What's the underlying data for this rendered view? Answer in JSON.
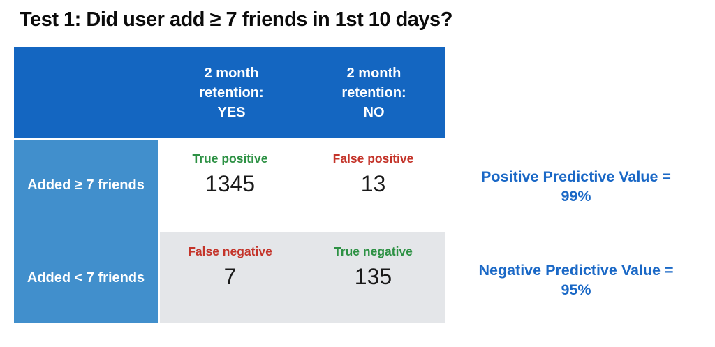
{
  "title": "Test 1: Did user add ≥ 7 friends in 1st 10 days?",
  "colors": {
    "header_bg": "#1466c1",
    "header_text": "#ffffff",
    "row_label_bg": "#418fcc",
    "row_label_text": "#ffffff",
    "row2_band_bg": "#e4e6e9",
    "true_label": "#2d9144",
    "false_label": "#c4342a",
    "value_text": "#1a1a1a",
    "metric_text": "#1a68c6"
  },
  "matrix": {
    "column_headers": [
      {
        "lines": [
          "2 month",
          "retention:",
          "YES"
        ]
      },
      {
        "lines": [
          "2 month",
          "retention:",
          "NO"
        ]
      }
    ],
    "rows": [
      {
        "label": "Added ≥ 7 friends",
        "cells": [
          {
            "label": "True positive",
            "value": "1345",
            "kind": "true"
          },
          {
            "label": "False positive",
            "value": "13",
            "kind": "false"
          }
        ]
      },
      {
        "label": "Added < 7 friends",
        "cells": [
          {
            "label": "False negative",
            "value": "7",
            "kind": "false"
          },
          {
            "label": "True negative",
            "value": "135",
            "kind": "true"
          }
        ]
      }
    ]
  },
  "metrics": [
    {
      "name": "Positive Predictive Value",
      "line1": "Positive Predictive Value =",
      "line2": "99%"
    },
    {
      "name": "Negative Predictive Value",
      "line1": "Negative Predictive Value =",
      "line2": "95%"
    }
  ]
}
